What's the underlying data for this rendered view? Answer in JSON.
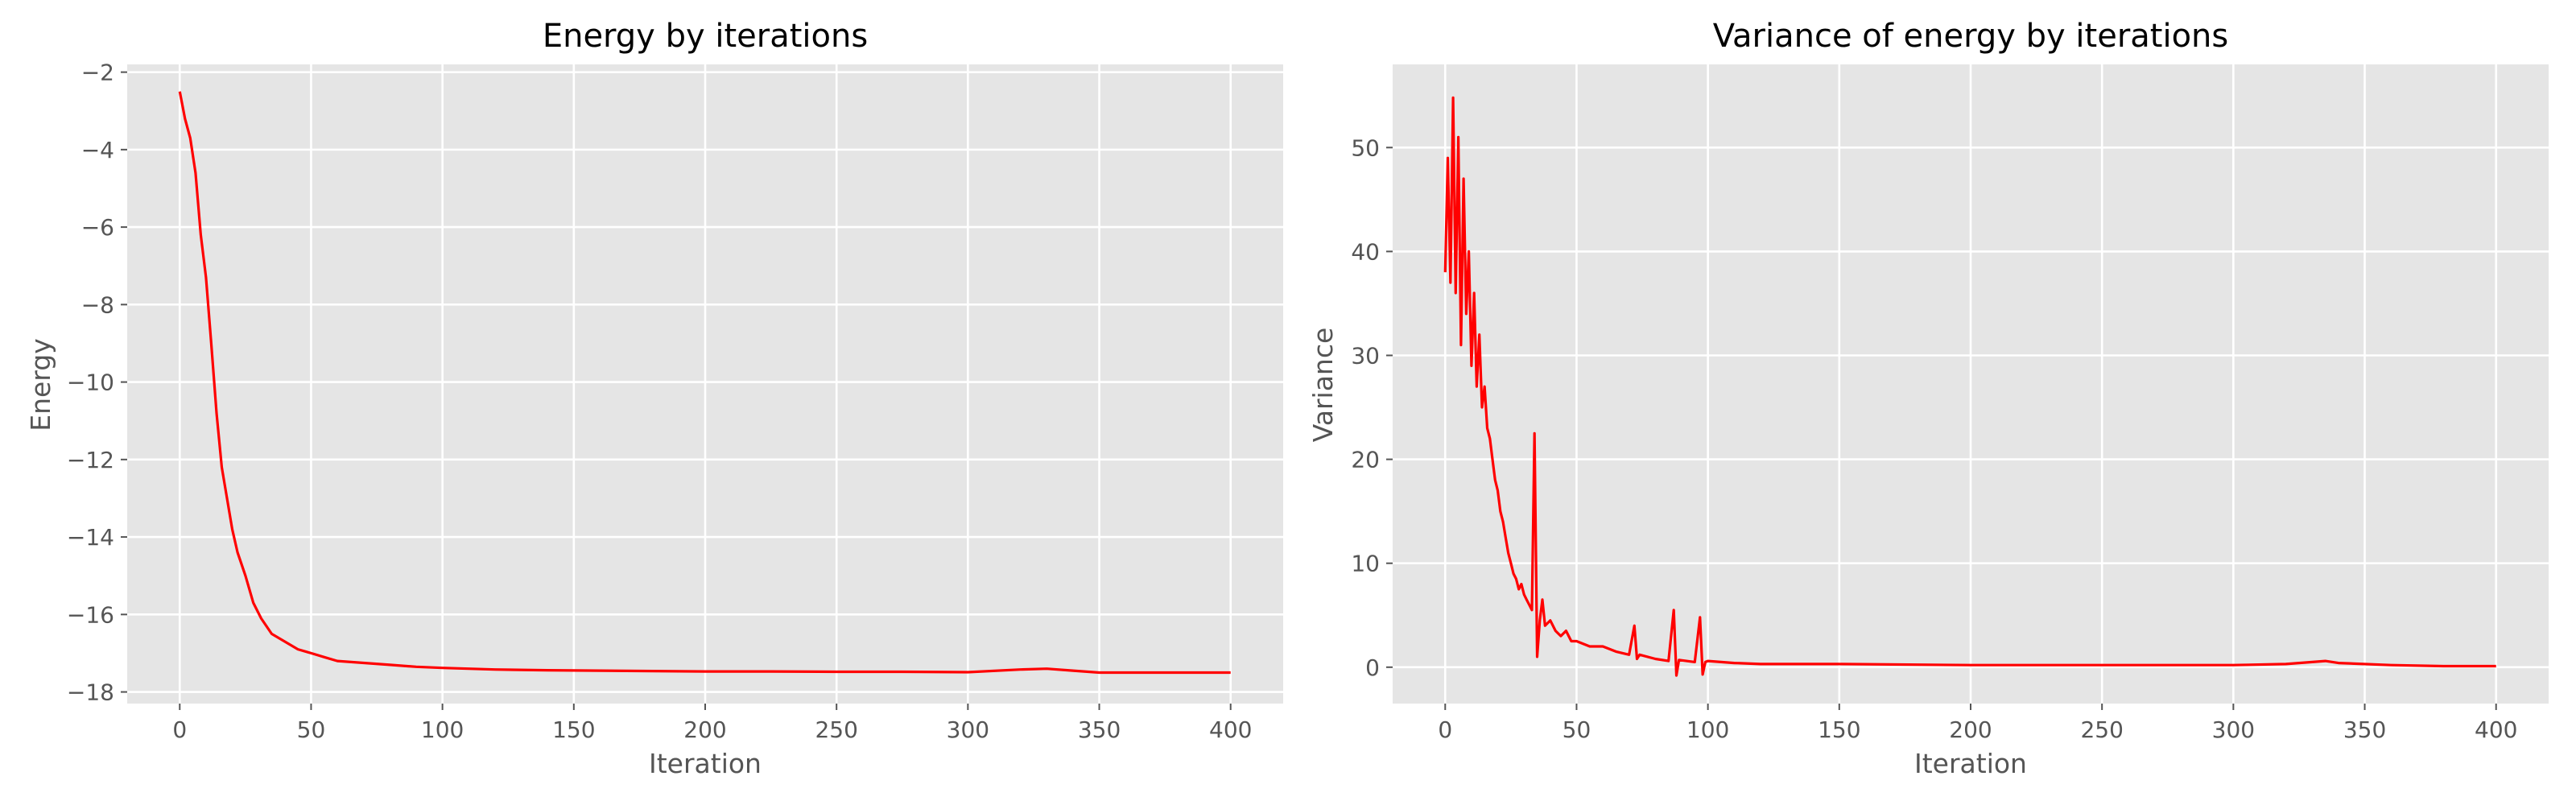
{
  "colors": {
    "series": "#FF0000",
    "background": "#E5E5E5",
    "grid": "#FFFFFF"
  },
  "chart_data": [
    {
      "type": "line",
      "title": "Energy by iterations",
      "xlabel": "Iteration",
      "ylabel": "Energy",
      "xlim": [
        -20,
        420
      ],
      "ylim": [
        -18.3,
        -1.8
      ],
      "xticks": [
        0,
        50,
        100,
        150,
        200,
        250,
        300,
        350,
        400
      ],
      "xtick_labels": [
        "0",
        "50",
        "100",
        "150",
        "200",
        "250",
        "300",
        "350",
        "400"
      ],
      "yticks": [
        -18,
        -16,
        -14,
        -12,
        -10,
        -8,
        -6,
        -4,
        -2
      ],
      "ytick_labels": [
        "−18",
        "−16",
        "−14",
        "−12",
        "−10",
        "−8",
        "−6",
        "−4",
        "−2"
      ],
      "grid": true,
      "series": [
        {
          "name": "Energy",
          "x": [
            0,
            2,
            4,
            6,
            8,
            10,
            12,
            14,
            16,
            18,
            20,
            22,
            25,
            28,
            31,
            35,
            40,
            45,
            50,
            55,
            60,
            70,
            80,
            90,
            100,
            110,
            120,
            140,
            160,
            180,
            200,
            225,
            250,
            275,
            300,
            320,
            330,
            340,
            350,
            375,
            400
          ],
          "y": [
            -2.5,
            -3.2,
            -3.7,
            -4.6,
            -6.2,
            -7.3,
            -9.0,
            -10.8,
            -12.2,
            -13.0,
            -13.8,
            -14.4,
            -15.0,
            -15.7,
            -16.1,
            -16.5,
            -16.7,
            -16.9,
            -17.0,
            -17.1,
            -17.2,
            -17.25,
            -17.3,
            -17.35,
            -17.38,
            -17.4,
            -17.42,
            -17.44,
            -17.45,
            -17.46,
            -17.47,
            -17.47,
            -17.48,
            -17.48,
            -17.49,
            -17.42,
            -17.4,
            -17.45,
            -17.5,
            -17.5,
            -17.5
          ]
        }
      ]
    },
    {
      "type": "line",
      "title": "Variance of energy by iterations",
      "xlabel": "Iteration",
      "ylabel": "Variance",
      "xlim": [
        -20,
        420
      ],
      "ylim": [
        -3.5,
        58
      ],
      "xticks": [
        0,
        50,
        100,
        150,
        200,
        250,
        300,
        350,
        400
      ],
      "xtick_labels": [
        "0",
        "50",
        "100",
        "150",
        "200",
        "250",
        "300",
        "350",
        "400"
      ],
      "yticks": [
        0,
        10,
        20,
        30,
        40,
        50
      ],
      "ytick_labels": [
        "0",
        "10",
        "20",
        "30",
        "40",
        "50"
      ],
      "grid": true,
      "series": [
        {
          "name": "Variance",
          "x": [
            0,
            1,
            2,
            3,
            4,
            5,
            6,
            7,
            8,
            9,
            10,
            11,
            12,
            13,
            14,
            15,
            16,
            17,
            18,
            19,
            20,
            21,
            22,
            23,
            24,
            25,
            26,
            27,
            28,
            29,
            30,
            31,
            32,
            33,
            34,
            35,
            36,
            37,
            38,
            40,
            42,
            44,
            46,
            48,
            50,
            55,
            60,
            65,
            70,
            72,
            73,
            74,
            80,
            85,
            87,
            88,
            89,
            95,
            97,
            98,
            99,
            100,
            110,
            120,
            150,
            200,
            250,
            300,
            320,
            330,
            335,
            340,
            360,
            380,
            400
          ],
          "y": [
            38,
            49,
            37,
            54.8,
            36,
            51,
            31,
            47,
            34,
            40,
            29,
            36,
            27,
            32,
            25,
            27,
            23,
            22,
            20,
            18,
            17,
            15,
            14,
            12.5,
            11,
            10,
            9,
            8.5,
            7.5,
            8,
            7,
            6.5,
            6,
            5.5,
            22.5,
            1,
            4.5,
            6.5,
            4,
            4.5,
            3.5,
            3,
            3.5,
            2.5,
            2.5,
            2,
            2,
            1.5,
            1.2,
            4,
            0.8,
            1.2,
            0.8,
            0.6,
            5.5,
            -0.8,
            0.7,
            0.5,
            4.8,
            -0.7,
            0.5,
            0.6,
            0.4,
            0.3,
            0.3,
            0.2,
            0.2,
            0.2,
            0.3,
            0.5,
            0.6,
            0.4,
            0.2,
            0.1,
            0.1
          ]
        }
      ]
    }
  ]
}
